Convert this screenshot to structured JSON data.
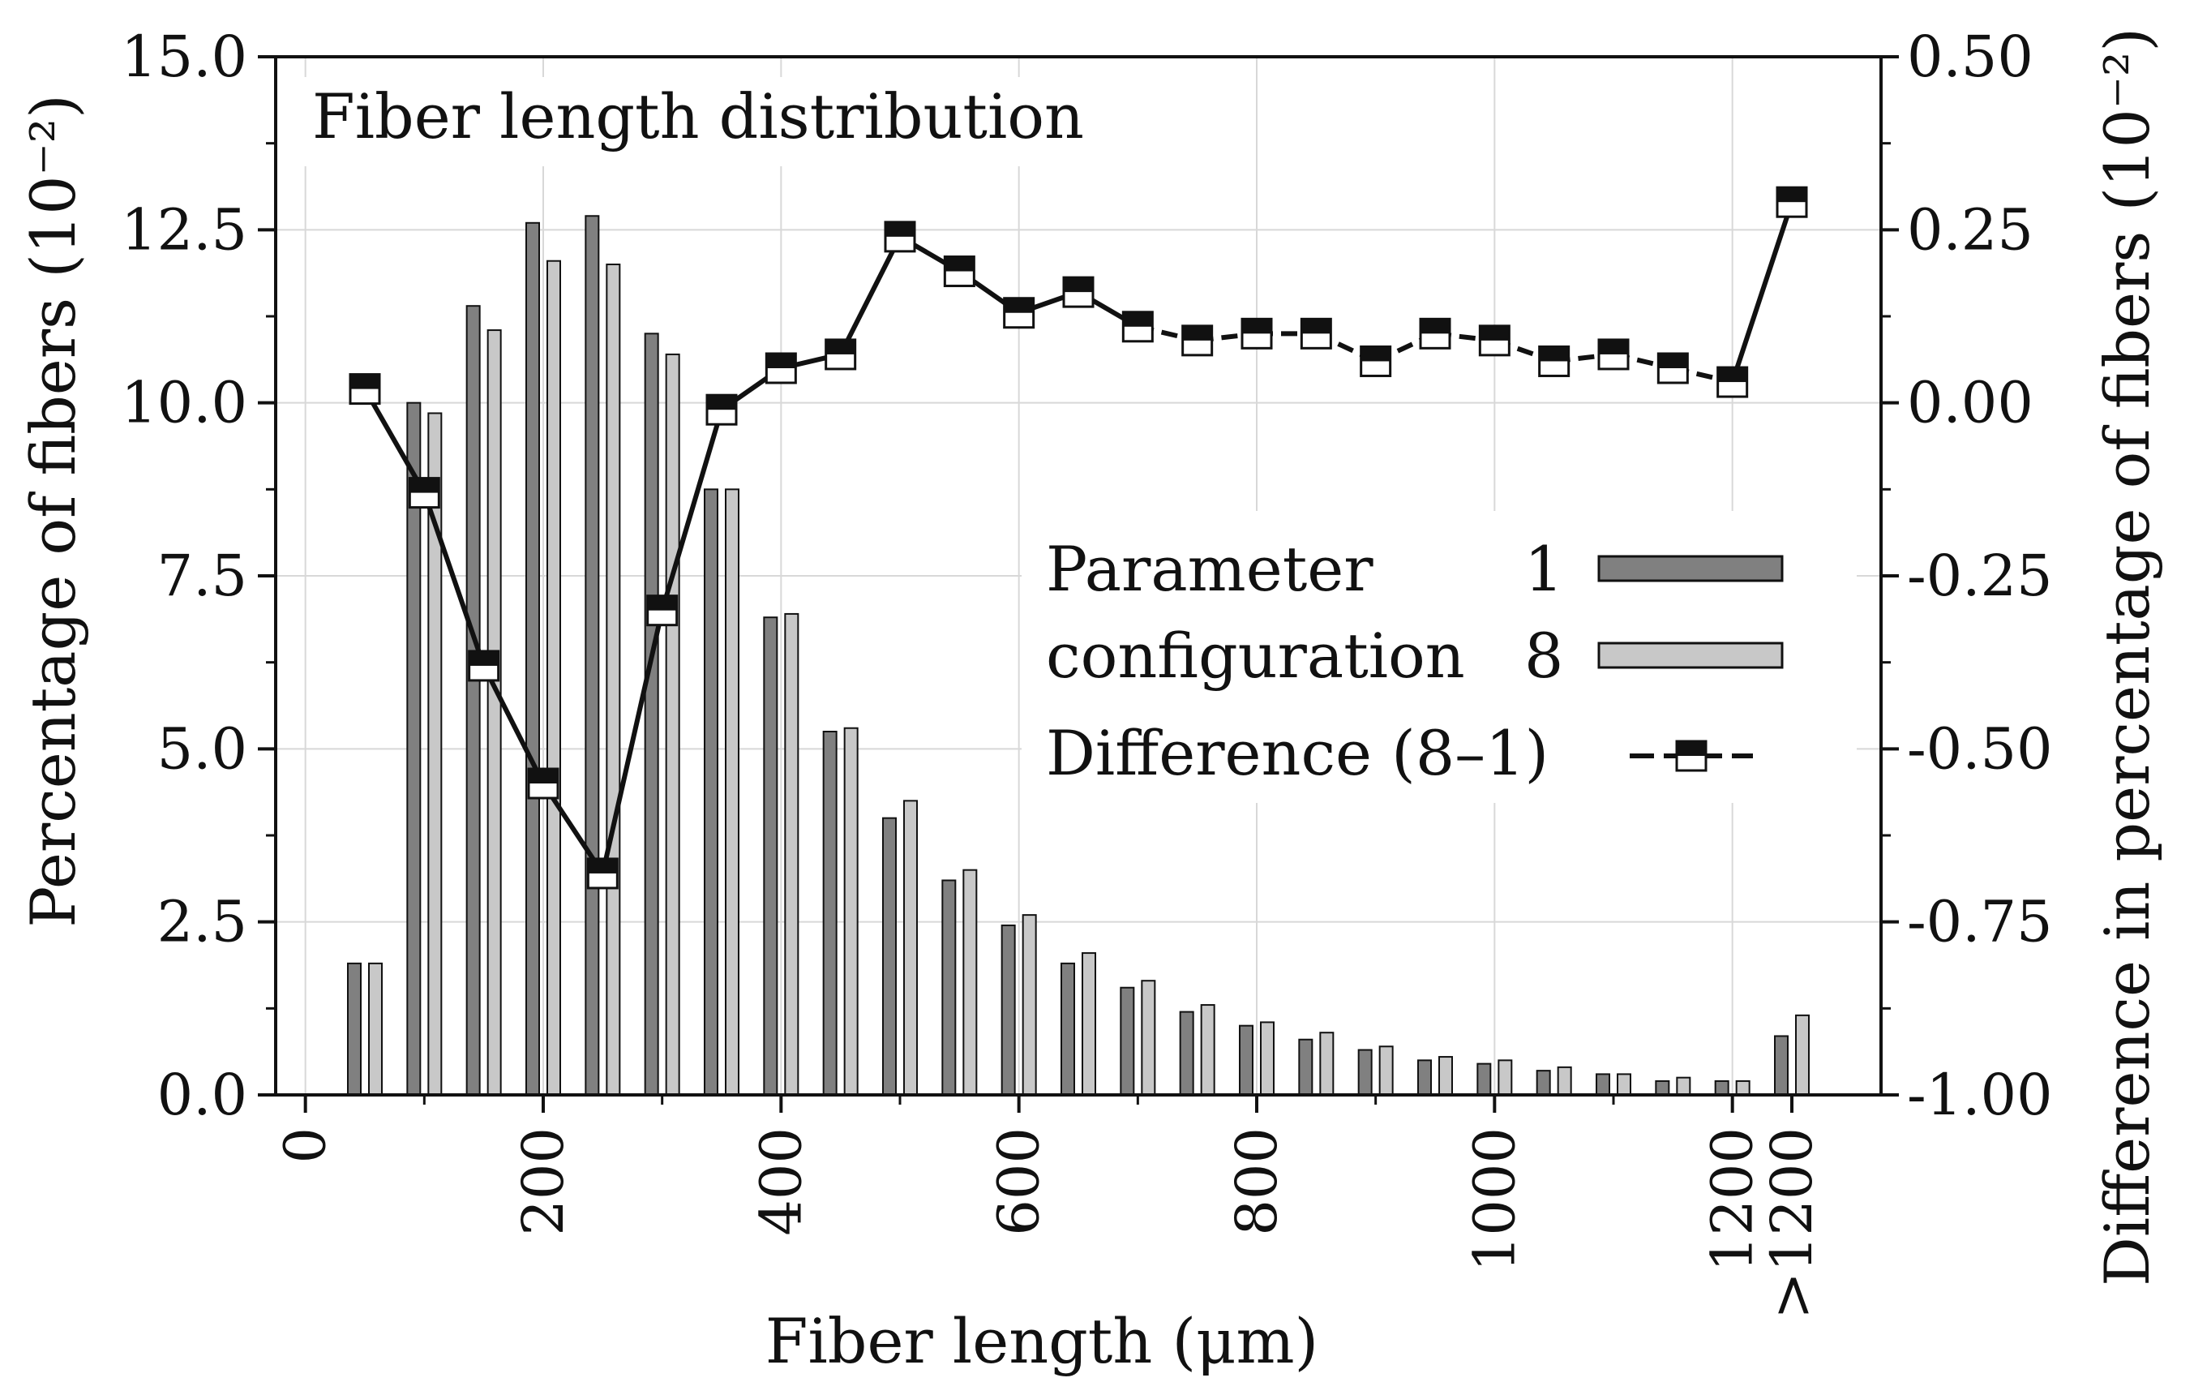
{
  "chart_data": {
    "type": "bar+line",
    "title": "Fiber length distribution",
    "xlabel": "Fiber length (μm)",
    "ylabel_left": "Percentage of fibers (10⁻²)",
    "ylabel_right": "Difference in percentage of fibers (10⁻²)",
    "ylim_left": [
      0,
      15
    ],
    "ylim_right": [
      -1,
      0.5
    ],
    "xlim": [
      -25,
      1325
    ],
    "x_ticks": [
      {
        "value": 0,
        "label": "0"
      },
      {
        "value": 200,
        "label": "200"
      },
      {
        "value": 400,
        "label": "400"
      },
      {
        "value": 600,
        "label": "600"
      },
      {
        "value": 800,
        "label": "800"
      },
      {
        "value": 1000,
        "label": "1000"
      },
      {
        "value": 1200,
        "label": "1200"
      },
      {
        "value": 1250,
        "label": ">1200"
      }
    ],
    "y_ticks_left": [
      {
        "value": 0,
        "label": "0.0"
      },
      {
        "value": 2.5,
        "label": "2.5"
      },
      {
        "value": 5,
        "label": "5.0"
      },
      {
        "value": 7.5,
        "label": "7.5"
      },
      {
        "value": 10,
        "label": "10.0"
      },
      {
        "value": 12.5,
        "label": "12.5"
      },
      {
        "value": 15,
        "label": "15.0"
      }
    ],
    "y_ticks_right": [
      {
        "value": -1,
        "label": "-1.00"
      },
      {
        "value": -0.75,
        "label": "-0.75"
      },
      {
        "value": -0.5,
        "label": "-0.50"
      },
      {
        "value": -0.25,
        "label": "-0.25"
      },
      {
        "value": 0,
        "label": "0.00"
      },
      {
        "value": 0.25,
        "label": "0.25"
      },
      {
        "value": 0.5,
        "label": "0.50"
      }
    ],
    "grid": true,
    "x": [
      50,
      100,
      150,
      200,
      250,
      300,
      350,
      400,
      450,
      500,
      550,
      600,
      650,
      700,
      750,
      800,
      850,
      900,
      950,
      1000,
      1050,
      1100,
      1150,
      1200,
      1250
    ],
    "series": [
      {
        "name": "1",
        "kind": "bar",
        "color": "#808080",
        "values": [
          1.9,
          10.0,
          11.4,
          12.6,
          12.7,
          11.0,
          8.75,
          6.9,
          5.25,
          4.0,
          3.1,
          2.45,
          1.9,
          1.55,
          1.2,
          1.0,
          0.8,
          0.65,
          0.5,
          0.45,
          0.35,
          0.3,
          0.2,
          0.2,
          0.85
        ]
      },
      {
        "name": "8",
        "kind": "bar",
        "color": "#c8c8c8",
        "values": [
          1.9,
          9.85,
          11.05,
          12.05,
          12.0,
          10.7,
          8.75,
          6.95,
          5.3,
          4.25,
          3.25,
          2.6,
          2.05,
          1.65,
          1.3,
          1.05,
          0.9,
          0.7,
          0.55,
          0.5,
          0.4,
          0.3,
          0.25,
          0.2,
          1.15
        ]
      },
      {
        "name": "Difference (8–1)",
        "kind": "line",
        "axis": "right",
        "color": "#111111",
        "values": [
          0.02,
          -0.13,
          -0.38,
          -0.55,
          -0.68,
          -0.3,
          -0.01,
          0.05,
          0.07,
          0.24,
          0.19,
          0.13,
          0.16,
          0.11,
          0.09,
          0.1,
          0.1,
          0.06,
          0.1,
          0.09,
          0.06,
          0.07,
          0.05,
          0.03,
          0.29
        ]
      }
    ],
    "legend": {
      "position": "center-right",
      "group_label_line1": "Parameter",
      "group_label_line2": "configuration",
      "entries": [
        {
          "label": "1",
          "series": 0
        },
        {
          "label": "8",
          "series": 1
        },
        {
          "label": "Difference (8–1)",
          "series": 2
        }
      ]
    }
  }
}
